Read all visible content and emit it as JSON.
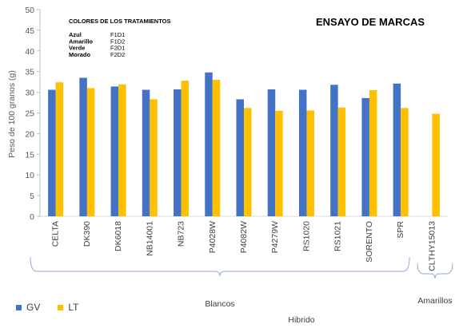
{
  "chart_data": {
    "type": "bar",
    "title": "ENSAYO DE MARCAS",
    "ylabel": "Peso de 100 granos (g)",
    "xlabel": "Hibrido",
    "ylim": [
      0,
      50
    ],
    "yticks": [
      0,
      5,
      10,
      15,
      20,
      25,
      30,
      35,
      40,
      45,
      50
    ],
    "grid": false,
    "legend_position": "bottom-left",
    "categories": [
      "CELTA",
      "DK390",
      "DK6018",
      "NB14001",
      "NB723",
      "P4028W",
      "P4082W",
      "P4279W",
      "RS1020",
      "RS1021",
      "SORENTO",
      "SPR",
      "CLTHY15013"
    ],
    "series": [
      {
        "name": "GV",
        "color": "#4472C4",
        "values": [
          30.6,
          33.5,
          31.4,
          30.6,
          30.7,
          34.8,
          28.3,
          30.7,
          30.6,
          31.8,
          28.6,
          32.1,
          null
        ]
      },
      {
        "name": "LT",
        "color": "#FFC000",
        "values": [
          32.4,
          31.0,
          31.9,
          28.3,
          32.8,
          33.0,
          26.2,
          25.5,
          25.6,
          26.3,
          30.5,
          26.2,
          24.8
        ]
      }
    ],
    "groups": [
      {
        "label": "Blancos",
        "from": 0,
        "to": 11
      },
      {
        "label": "Amarillos",
        "from": 12,
        "to": 12
      }
    ],
    "annotation": {
      "heading": "COLORES DE LOS TRATAMIENTOS",
      "rows": [
        {
          "color": "Azul",
          "code": "F1D1"
        },
        {
          "color": "Amarillo",
          "code": "F1D2"
        },
        {
          "color": "Verde",
          "code": "F2D1"
        },
        {
          "color": "Morado",
          "code": "F2D2"
        }
      ]
    }
  }
}
